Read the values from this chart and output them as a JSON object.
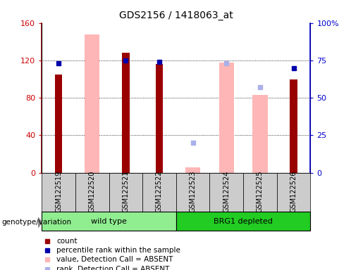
{
  "title": "GDS2156 / 1418063_at",
  "samples": [
    "GSM122519",
    "GSM122520",
    "GSM122521",
    "GSM122522",
    "GSM122523",
    "GSM122524",
    "GSM122525",
    "GSM122526"
  ],
  "count_present": [
    105,
    null,
    128,
    116,
    null,
    null,
    null,
    100
  ],
  "value_absent": [
    null,
    148,
    null,
    null,
    6,
    118,
    83,
    null
  ],
  "rank_present": [
    73,
    null,
    75,
    74,
    null,
    null,
    null,
    70
  ],
  "rank_absent": [
    null,
    null,
    null,
    null,
    20,
    73,
    57,
    null
  ],
  "ylim_left": [
    0,
    160
  ],
  "ylim_right": [
    0,
    100
  ],
  "yticks_left": [
    0,
    40,
    80,
    120,
    160
  ],
  "yticks_right": [
    0,
    25,
    50,
    75,
    100
  ],
  "ytick_labels_left": [
    "0",
    "40",
    "80",
    "120",
    "160"
  ],
  "ytick_labels_right": [
    "0",
    "25",
    "50",
    "75",
    "100%"
  ],
  "colors": {
    "count_present": "#990000",
    "rank_present": "#0000aa",
    "value_absent": "#ffb6b6",
    "rank_absent": "#aab0e8",
    "axis_left": "#cc0000",
    "axis_right": "#0000cc",
    "bg_label": "#cccccc",
    "bg_group1": "#90ee90",
    "bg_group2": "#22cc22"
  },
  "group1_label": "wild type",
  "group1_range": [
    0,
    3
  ],
  "group2_label": "BRG1 depleted",
  "group2_range": [
    4,
    7
  ],
  "legend_items": [
    {
      "label": "count",
      "color": "#990000"
    },
    {
      "label": "percentile rank within the sample",
      "color": "#0000aa"
    },
    {
      "label": "value, Detection Call = ABSENT",
      "color": "#ffb6b6"
    },
    {
      "label": "rank, Detection Call = ABSENT",
      "color": "#aab0e8"
    }
  ],
  "genotype_label": "genotype/variation"
}
